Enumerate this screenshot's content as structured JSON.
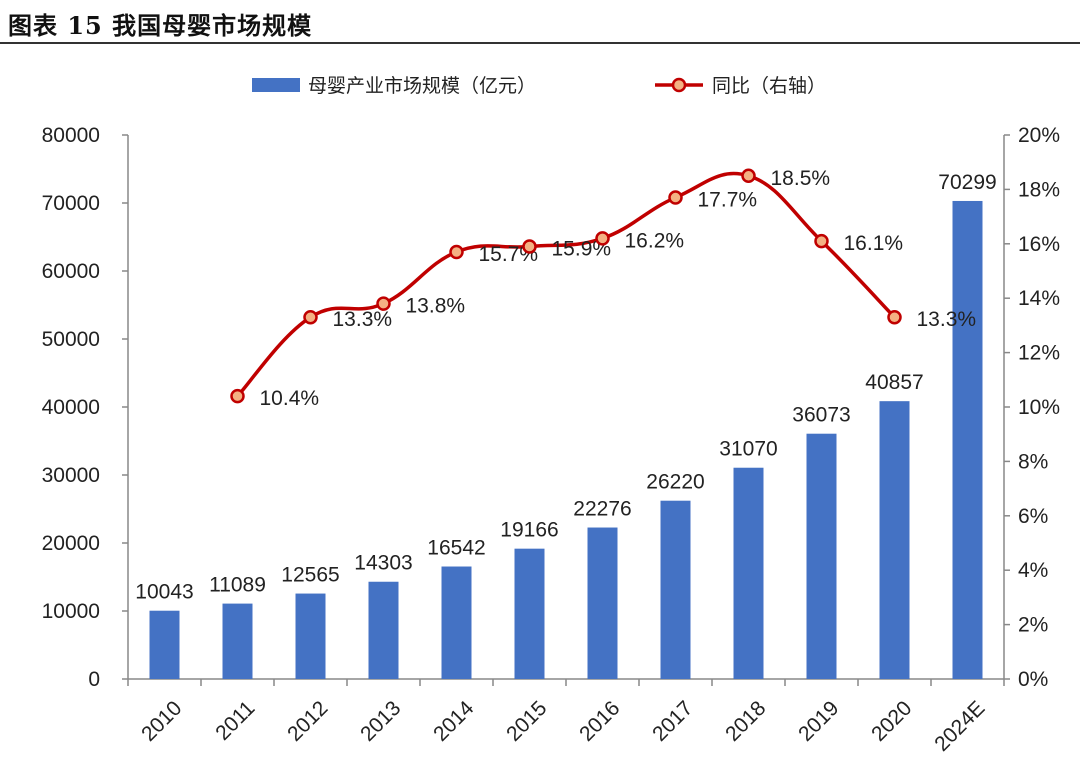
{
  "header": {
    "title": "图表 15 我国母婴市场规模"
  },
  "chart_data": {
    "type": "bar",
    "title": "我国母婴市场规模",
    "categories": [
      "2010",
      "2011",
      "2012",
      "2013",
      "2014",
      "2015",
      "2016",
      "2017",
      "2018",
      "2019",
      "2020",
      "2024E"
    ],
    "series": [
      {
        "name": "母婴产业市场规模（亿元）",
        "type": "bar",
        "axis": "left",
        "color": "#4472C4",
        "values": [
          10043,
          11089,
          12565,
          14303,
          16542,
          19166,
          22276,
          26220,
          31070,
          36073,
          40857,
          70299
        ]
      },
      {
        "name": "同比（右轴）",
        "type": "line",
        "axis": "right",
        "color": "#C00000",
        "marker_fill": "#F4B183",
        "values": [
          null,
          10.4,
          13.3,
          13.8,
          15.7,
          15.9,
          16.2,
          17.7,
          18.5,
          16.1,
          13.3,
          null
        ],
        "labels": [
          null,
          "10.4%",
          "13.3%",
          "13.8%",
          "15.7%",
          "15.9%",
          "16.2%",
          "17.7%",
          "18.5%",
          "16.1%",
          "13.3%",
          null
        ]
      }
    ],
    "y_left": {
      "min": 0,
      "max": 80000,
      "ticks": [
        "0",
        "10000",
        "20000",
        "30000",
        "40000",
        "50000",
        "60000",
        "70000",
        "80000"
      ]
    },
    "y_right": {
      "min": 0,
      "max": 20,
      "ticks": [
        "0%",
        "2%",
        "4%",
        "6%",
        "8%",
        "10%",
        "12%",
        "14%",
        "16%",
        "18%",
        "20%"
      ]
    },
    "legend_position": "top-center"
  }
}
